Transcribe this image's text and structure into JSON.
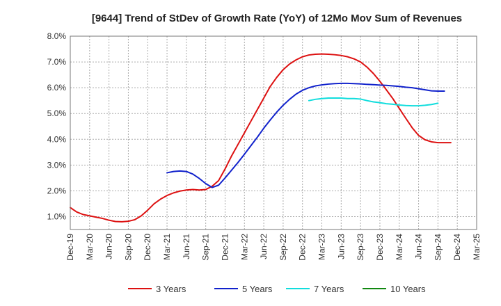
{
  "chart_data": {
    "type": "line",
    "title": "[9644]  Trend of StDev of Growth Rate (YoY) of 12Mo Mov Sum of Revenues",
    "xlabel": "",
    "ylabel": "",
    "y_unit": "%",
    "ylim": [
      0.5,
      8.0
    ],
    "y_ticks": [
      "1.0%",
      "2.0%",
      "3.0%",
      "4.0%",
      "5.0%",
      "6.0%",
      "7.0%",
      "8.0%"
    ],
    "y_tick_values": [
      1.0,
      2.0,
      3.0,
      4.0,
      5.0,
      6.0,
      7.0,
      8.0
    ],
    "x_tick_labels": [
      "Dec-19",
      "Mar-20",
      "Jun-20",
      "Sep-20",
      "Dec-20",
      "Mar-21",
      "Jun-21",
      "Sep-21",
      "Dec-21",
      "Mar-22",
      "Jun-22",
      "Sep-22",
      "Dec-22",
      "Mar-23",
      "Jun-23",
      "Sep-23",
      "Dec-23",
      "Mar-24",
      "Jun-24",
      "Sep-24",
      "Dec-24",
      "Mar-25"
    ],
    "grid": true,
    "legend_position": "bottom",
    "series": [
      {
        "name": "3 Years",
        "color": "#dd1111",
        "start_index": 0,
        "values": [
          1.35,
          1.18,
          1.08,
          1.03,
          0.98,
          0.93,
          0.86,
          0.81,
          0.8,
          0.82,
          0.88,
          1.03,
          1.25,
          1.5,
          1.68,
          1.82,
          1.92,
          1.99,
          2.03,
          2.05,
          2.03,
          2.05,
          2.18,
          2.4,
          2.85,
          3.35,
          3.8,
          4.25,
          4.7,
          5.15,
          5.6,
          6.05,
          6.4,
          6.7,
          6.92,
          7.08,
          7.2,
          7.27,
          7.3,
          7.31,
          7.3,
          7.28,
          7.25,
          7.2,
          7.12,
          7.0,
          6.8,
          6.55,
          6.25,
          5.92,
          5.58,
          5.2,
          4.82,
          4.45,
          4.15,
          3.98,
          3.9,
          3.87,
          3.87,
          3.87
        ]
      },
      {
        "name": "5 Years",
        "color": "#1122cc",
        "start_index": 15,
        "values": [
          2.7,
          2.75,
          2.77,
          2.75,
          2.65,
          2.48,
          2.28,
          2.13,
          2.22,
          2.5,
          2.8,
          3.1,
          3.42,
          3.75,
          4.08,
          4.43,
          4.75,
          5.05,
          5.32,
          5.55,
          5.75,
          5.9,
          6.0,
          6.07,
          6.11,
          6.14,
          6.16,
          6.17,
          6.17,
          6.16,
          6.15,
          6.13,
          6.12,
          6.1,
          6.09,
          6.07,
          6.05,
          6.02,
          6.0,
          5.96,
          5.92,
          5.88,
          5.87,
          5.87
        ]
      },
      {
        "name": "7 Years",
        "color": "#11dddd",
        "start_index": 37,
        "values": [
          5.5,
          5.55,
          5.58,
          5.6,
          5.6,
          5.6,
          5.58,
          5.58,
          5.56,
          5.5,
          5.45,
          5.42,
          5.38,
          5.36,
          5.33,
          5.31,
          5.3,
          5.3,
          5.32,
          5.35,
          5.4
        ]
      },
      {
        "name": "10 Years",
        "color": "#118811",
        "start_index": 0,
        "values": []
      }
    ]
  }
}
